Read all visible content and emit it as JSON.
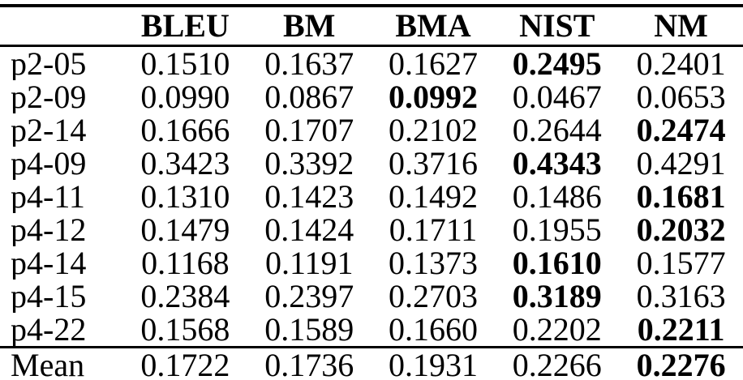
{
  "table": {
    "columns": [
      "",
      "BLEU",
      "BM",
      "BMA",
      "NIST",
      "NM"
    ],
    "rows": [
      {
        "label": "p2-05",
        "values": [
          "0.1510",
          "0.1637",
          "0.1627",
          "0.2495",
          "0.2401"
        ],
        "bold": [
          3
        ]
      },
      {
        "label": "p2-09",
        "values": [
          "0.0990",
          "0.0867",
          "0.0992",
          "0.0467",
          "0.0653"
        ],
        "bold": [
          2
        ]
      },
      {
        "label": "p2-14",
        "values": [
          "0.1666",
          "0.1707",
          "0.2102",
          "0.2644",
          "0.2474"
        ],
        "bold": [
          4
        ]
      },
      {
        "label": "p4-09",
        "values": [
          "0.3423",
          "0.3392",
          "0.3716",
          "0.4343",
          "0.4291"
        ],
        "bold": [
          3
        ]
      },
      {
        "label": "p4-11",
        "values": [
          "0.1310",
          "0.1423",
          "0.1492",
          "0.1486",
          "0.1681"
        ],
        "bold": [
          4
        ]
      },
      {
        "label": "p4-12",
        "values": [
          "0.1479",
          "0.1424",
          "0.1711",
          "0.1955",
          "0.2032"
        ],
        "bold": [
          4
        ]
      },
      {
        "label": "p4-14",
        "values": [
          "0.1168",
          "0.1191",
          "0.1373",
          "0.1610",
          "0.1577"
        ],
        "bold": [
          3
        ]
      },
      {
        "label": "p4-15",
        "values": [
          "0.2384",
          "0.2397",
          "0.2703",
          "0.3189",
          "0.3163"
        ],
        "bold": [
          3
        ]
      },
      {
        "label": "p4-22",
        "values": [
          "0.1568",
          "0.1589",
          "0.1660",
          "0.2202",
          "0.2211"
        ],
        "bold": [
          4
        ]
      }
    ],
    "footer": {
      "label": "Mean",
      "values": [
        "0.1722",
        "0.1736",
        "0.1931",
        "0.2266",
        "0.2276"
      ],
      "bold": [
        4
      ]
    },
    "text_color": "#000000",
    "background_color": "#ffffff"
  }
}
